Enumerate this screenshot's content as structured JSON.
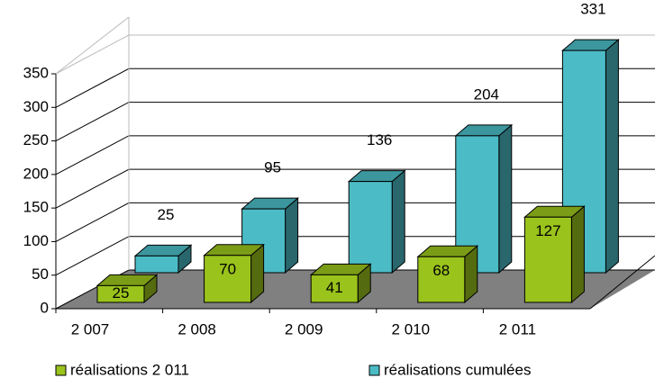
{
  "chart_data": {
    "type": "bar3d",
    "categories": [
      "2 007",
      "2 008",
      "2 009",
      "2 010",
      "2 011"
    ],
    "series": [
      {
        "name": "réalisations 2 011",
        "color": "#9ac31c",
        "values": [
          25,
          70,
          41,
          68,
          127
        ]
      },
      {
        "name": "réalisations cumulées",
        "color": "#4bbcc6",
        "values": [
          25,
          95,
          136,
          204,
          331
        ]
      }
    ],
    "ylim": [
      0,
      350
    ],
    "yticks": [
      0,
      50,
      100,
      150,
      200,
      250,
      300,
      350
    ],
    "grid": true,
    "legend": "bottom"
  }
}
